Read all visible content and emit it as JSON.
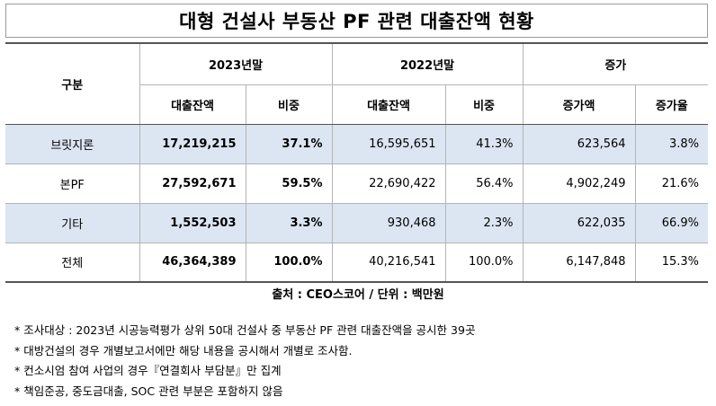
{
  "title": "대형 건설사 부동산 PF 관련 대출잔액 현황",
  "table": {
    "row_header": "구분",
    "groups": [
      "2023년말",
      "2022년말",
      "증가"
    ],
    "subheaders": [
      "대출잔액",
      "비중",
      "대출잔액",
      "비중",
      "증가액",
      "증가율"
    ],
    "rows": [
      {
        "label": "브릿지론",
        "cells": [
          "17,219,215",
          "37.1%",
          "16,595,651",
          "41.3%",
          "623,564",
          "3.8%"
        ]
      },
      {
        "label": "본PF",
        "cells": [
          "27,592,671",
          "59.5%",
          "22,690,422",
          "56.4%",
          "4,902,249",
          "21.6%"
        ]
      },
      {
        "label": "기타",
        "cells": [
          "1,552,503",
          "3.3%",
          "930,468",
          "2.3%",
          "622,035",
          "66.9%"
        ]
      },
      {
        "label": "전체",
        "cells": [
          "46,364,389",
          "100.0%",
          "40,216,541",
          "100.0%",
          "6,147,848",
          "15.3%"
        ]
      }
    ]
  },
  "source": "출처 : CEO스코어 / 단위 : 백만원",
  "notes": [
    "* 조사대상 : 2023년 시공능력평가 상위 50대 건설사 중 부동산 PF 관련 대출잔액을 공시한 39곳",
    "* 대방건설의 경우 개별보고서에만 해당 내용을 공시해서 개별로 조사함.",
    "* 컨소시엄 참여 사업의 경우『연결회사 부담분』만 집계",
    "* 책임준공, 중도금대출, SOC 관련 부분은 포함하지 않음"
  ],
  "colors": {
    "shade": "#dce6f2",
    "rule": "#555555",
    "grid": "#b4b4b4"
  }
}
